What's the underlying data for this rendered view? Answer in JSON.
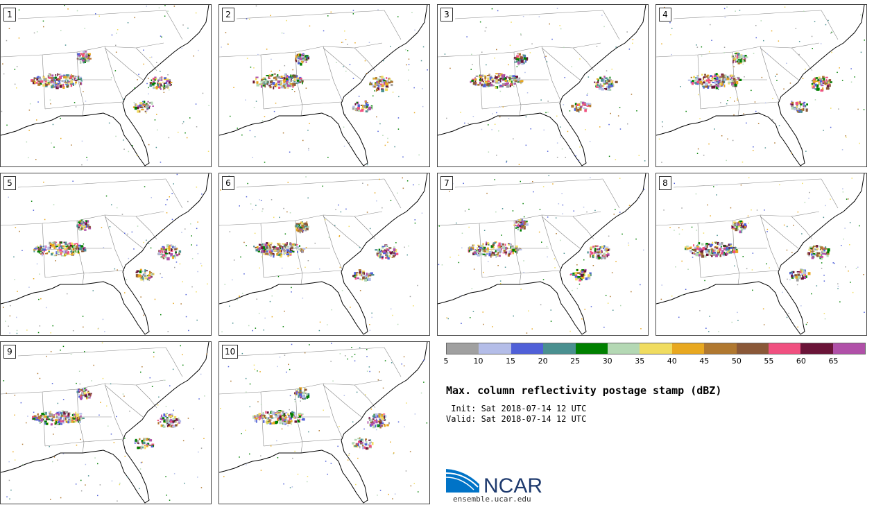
{
  "title": "Max. column reflectivity postage stamp (dBZ)",
  "init_line": " Init: Sat 2018-07-14 12 UTC",
  "valid_line": "Valid: Sat 2018-07-14 12 UTC",
  "members": [
    "1",
    "2",
    "3",
    "4",
    "5",
    "6",
    "7",
    "8",
    "9",
    "10"
  ],
  "colorbar": {
    "ticks": [
      "5",
      "10",
      "15",
      "20",
      "25",
      "30",
      "35",
      "40",
      "45",
      "50",
      "55",
      "60",
      "65"
    ],
    "colors": [
      "#a0a0a0",
      "#b4bde8",
      "#5060d8",
      "#4a9090",
      "#008000",
      "#b4d8b4",
      "#f0dc60",
      "#e8a820",
      "#b07830",
      "#8a5838",
      "#f05080",
      "#6a1438",
      "#b050a8"
    ]
  },
  "logo": {
    "text": "NCAR",
    "url_text": "ensemble.ucar.edu",
    "colors": [
      "#0073c7",
      "#1e3a6e"
    ]
  }
}
